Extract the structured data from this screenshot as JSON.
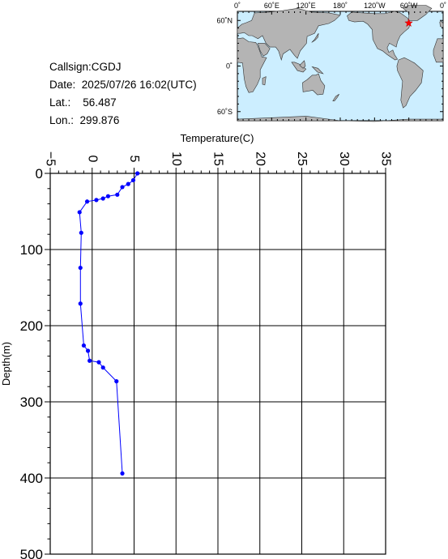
{
  "info": {
    "callsign_label": "Callsign:",
    "callsign": "CGDJ",
    "date_label": "Date:",
    "date": "2025/07/26 16:02(UTC)",
    "lat_label": "Lat.:",
    "lat": "56.487",
    "lon_label": "Lon.:",
    "lon": "299.876"
  },
  "map": {
    "lon_labels": [
      "0˚",
      "60˚E",
      "120˚E",
      "180˚",
      "120˚W",
      "60˚W",
      "0˚"
    ],
    "lat_labels": [
      "60˚N",
      "0˚",
      "60˚S"
    ],
    "ocean_color": "#cceeff",
    "land_color": "#b4b4b4",
    "marker": "star",
    "marker_color": "#ff0000",
    "station_lat": 56.487,
    "station_lon": 299.876
  },
  "chart_data": {
    "type": "line",
    "title": "",
    "xlabel": "Temperature(C)",
    "ylabel": "Depth(m)",
    "xlim": [
      -5,
      35
    ],
    "ylim": [
      0,
      500
    ],
    "y_inverted": true,
    "x_ticks": [
      "−5",
      "0",
      "5",
      "10",
      "15",
      "20",
      "25",
      "30",
      "35"
    ],
    "y_ticks": [
      "0",
      "100",
      "200",
      "300",
      "400",
      "500"
    ],
    "grid": true,
    "line_color": "#0000ff",
    "series": [
      {
        "temperature": [
          5.4,
          4.9,
          4.3,
          3.6,
          3.0,
          1.9,
          1.3,
          0.5,
          -0.6,
          -1.5,
          -1.3,
          -1.4,
          -1.4,
          -1.0,
          -0.5,
          -0.3,
          0.8,
          1.3,
          2.9,
          3.6
        ],
        "depth": [
          0,
          9,
          14,
          18,
          28,
          30,
          33,
          35,
          37,
          51,
          78,
          124,
          171,
          226,
          233,
          246,
          248,
          255,
          273,
          394
        ]
      }
    ]
  }
}
